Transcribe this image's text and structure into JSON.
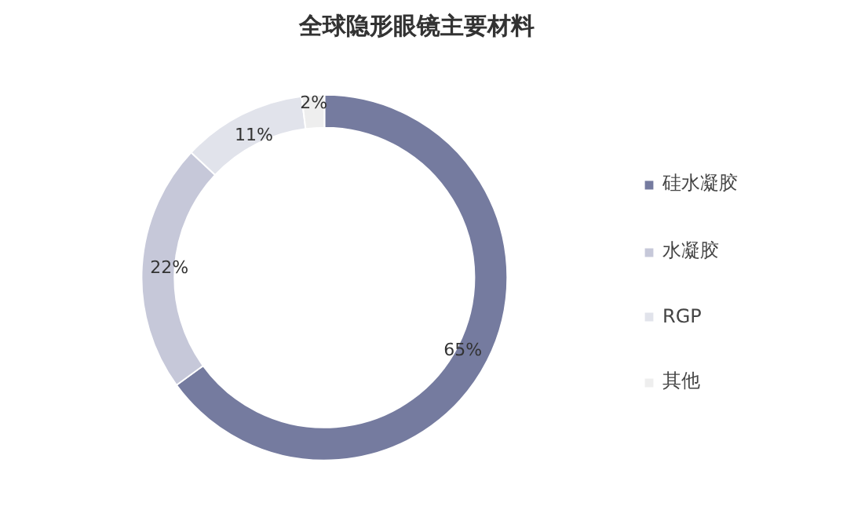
{
  "chart_data": {
    "type": "donut",
    "title": "全球隐形眼镜主要材料",
    "categories": [
      "硅水凝胶",
      "水凝胶",
      "RGP",
      "其他"
    ],
    "values": [
      65,
      22,
      11,
      2
    ],
    "colors": [
      "#757b9f",
      "#c6c8d9",
      "#e1e3eb",
      "#eeeeee"
    ],
    "value_labels": [
      "65%",
      "22%",
      "11%",
      "2%"
    ],
    "legend": "right"
  }
}
